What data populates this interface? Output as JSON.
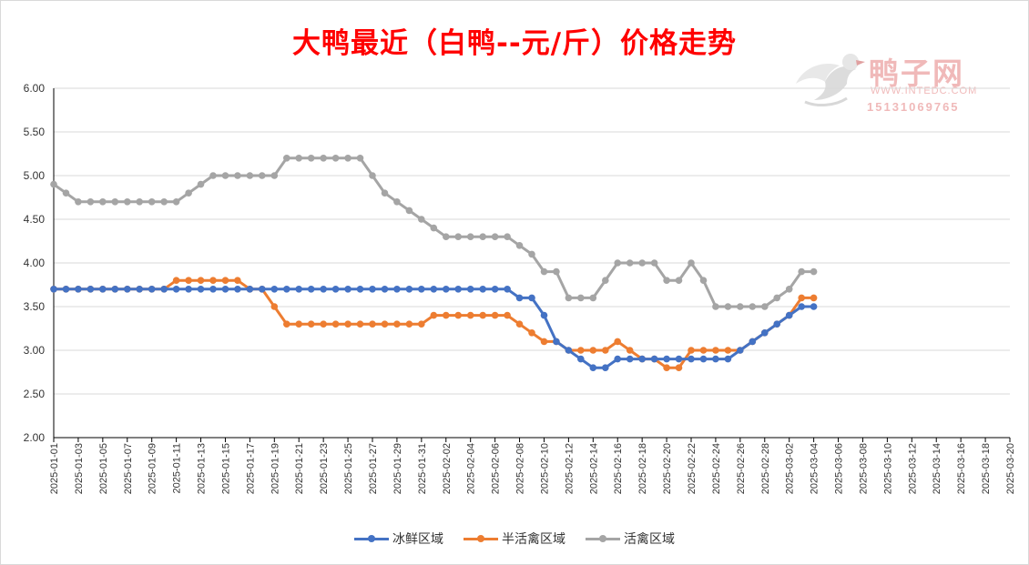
{
  "chart_data": {
    "type": "line",
    "title": "大鸭最近（白鸭--元/斤）价格走势",
    "xlabel": "",
    "ylabel": "",
    "ylim": [
      2.0,
      6.0
    ],
    "y_ticks": [
      "2.00",
      "2.50",
      "3.00",
      "3.50",
      "4.00",
      "4.50",
      "5.00",
      "5.50",
      "6.00"
    ],
    "x_start": "2025-01-01",
    "x_end": "2025-03-20",
    "x_tick_labels": [
      "2025-01-01",
      "2025-01-03",
      "2025-01-05",
      "2025-01-07",
      "2025-01-09",
      "2025-01-11",
      "2025-01-13",
      "2025-01-15",
      "2025-01-17",
      "2025-01-19",
      "2025-01-21",
      "2025-01-23",
      "2025-01-25",
      "2025-01-27",
      "2025-01-29",
      "2025-01-31",
      "2025-02-02",
      "2025-02-04",
      "2025-02-06",
      "2025-02-08",
      "2025-02-10",
      "2025-02-12",
      "2025-02-14",
      "2025-02-16",
      "2025-02-18",
      "2025-02-20",
      "2025-02-22",
      "2025-02-24",
      "2025-02-26",
      "2025-02-28",
      "2025-03-02",
      "2025-03-04",
      "2025-03-06",
      "2025-03-08",
      "2025-03-10",
      "2025-03-12",
      "2025-03-14",
      "2025-03-16",
      "2025-03-18",
      "2025-03-20"
    ],
    "grid": true,
    "legend_position": "bottom",
    "series": [
      {
        "name": "冰鲜区域",
        "color": "#4472c4",
        "x": [
          "2025-01-01",
          "2025-01-02",
          "2025-01-03",
          "2025-01-04",
          "2025-01-05",
          "2025-01-06",
          "2025-01-07",
          "2025-01-08",
          "2025-01-09",
          "2025-01-10",
          "2025-01-11",
          "2025-01-12",
          "2025-01-13",
          "2025-01-14",
          "2025-01-15",
          "2025-01-16",
          "2025-01-17",
          "2025-01-18",
          "2025-01-19",
          "2025-01-20",
          "2025-01-21",
          "2025-01-22",
          "2025-01-23",
          "2025-01-24",
          "2025-01-25",
          "2025-01-26",
          "2025-01-27",
          "2025-01-28",
          "2025-01-29",
          "2025-01-30",
          "2025-01-31",
          "2025-02-01",
          "2025-02-02",
          "2025-02-03",
          "2025-02-04",
          "2025-02-05",
          "2025-02-06",
          "2025-02-07",
          "2025-02-08",
          "2025-02-09",
          "2025-02-10",
          "2025-02-11",
          "2025-02-12",
          "2025-02-13",
          "2025-02-14",
          "2025-02-15",
          "2025-02-16",
          "2025-02-17",
          "2025-02-18",
          "2025-02-19",
          "2025-02-20",
          "2025-02-21",
          "2025-02-22",
          "2025-02-23",
          "2025-02-24",
          "2025-02-25",
          "2025-02-26",
          "2025-02-27",
          "2025-02-28",
          "2025-03-01",
          "2025-03-02",
          "2025-03-03",
          "2025-03-04"
        ],
        "values": [
          3.7,
          3.7,
          3.7,
          3.7,
          3.7,
          3.7,
          3.7,
          3.7,
          3.7,
          3.7,
          3.7,
          3.7,
          3.7,
          3.7,
          3.7,
          3.7,
          3.7,
          3.7,
          3.7,
          3.7,
          3.7,
          3.7,
          3.7,
          3.7,
          3.7,
          3.7,
          3.7,
          3.7,
          3.7,
          3.7,
          3.7,
          3.7,
          3.7,
          3.7,
          3.7,
          3.7,
          3.7,
          3.7,
          3.6,
          3.6,
          3.4,
          3.1,
          3.0,
          2.9,
          2.8,
          2.8,
          2.9,
          2.9,
          2.9,
          2.9,
          2.9,
          2.9,
          2.9,
          2.9,
          2.9,
          2.9,
          3.0,
          3.1,
          3.2,
          3.3,
          3.4,
          3.5,
          3.5
        ]
      },
      {
        "name": "半活禽区域",
        "color": "#ed7d31",
        "x": [
          "2025-01-01",
          "2025-01-02",
          "2025-01-03",
          "2025-01-04",
          "2025-01-05",
          "2025-01-06",
          "2025-01-07",
          "2025-01-08",
          "2025-01-09",
          "2025-01-10",
          "2025-01-11",
          "2025-01-12",
          "2025-01-13",
          "2025-01-14",
          "2025-01-15",
          "2025-01-16",
          "2025-01-17",
          "2025-01-18",
          "2025-01-19",
          "2025-01-20",
          "2025-01-21",
          "2025-01-22",
          "2025-01-23",
          "2025-01-24",
          "2025-01-25",
          "2025-01-26",
          "2025-01-27",
          "2025-01-28",
          "2025-01-29",
          "2025-01-30",
          "2025-01-31",
          "2025-02-01",
          "2025-02-02",
          "2025-02-03",
          "2025-02-04",
          "2025-02-05",
          "2025-02-06",
          "2025-02-07",
          "2025-02-08",
          "2025-02-09",
          "2025-02-10",
          "2025-02-11",
          "2025-02-12",
          "2025-02-13",
          "2025-02-14",
          "2025-02-15",
          "2025-02-16",
          "2025-02-17",
          "2025-02-18",
          "2025-02-19",
          "2025-02-20",
          "2025-02-21",
          "2025-02-22",
          "2025-02-23",
          "2025-02-24",
          "2025-02-25",
          "2025-02-26",
          "2025-02-27",
          "2025-02-28",
          "2025-03-01",
          "2025-03-02",
          "2025-03-03",
          "2025-03-04"
        ],
        "values": [
          3.7,
          3.7,
          3.7,
          3.7,
          3.7,
          3.7,
          3.7,
          3.7,
          3.7,
          3.7,
          3.8,
          3.8,
          3.8,
          3.8,
          3.8,
          3.8,
          3.7,
          3.7,
          3.5,
          3.3,
          3.3,
          3.3,
          3.3,
          3.3,
          3.3,
          3.3,
          3.3,
          3.3,
          3.3,
          3.3,
          3.3,
          3.4,
          3.4,
          3.4,
          3.4,
          3.4,
          3.4,
          3.4,
          3.3,
          3.2,
          3.1,
          3.1,
          3.0,
          3.0,
          3.0,
          3.0,
          3.1,
          3.0,
          2.9,
          2.9,
          2.8,
          2.8,
          3.0,
          3.0,
          3.0,
          3.0,
          3.0,
          3.1,
          3.2,
          3.3,
          3.4,
          3.6,
          3.6
        ]
      },
      {
        "name": "活禽区域",
        "color": "#a5a5a5",
        "x": [
          "2025-01-01",
          "2025-01-02",
          "2025-01-03",
          "2025-01-04",
          "2025-01-05",
          "2025-01-06",
          "2025-01-07",
          "2025-01-08",
          "2025-01-09",
          "2025-01-10",
          "2025-01-11",
          "2025-01-12",
          "2025-01-13",
          "2025-01-14",
          "2025-01-15",
          "2025-01-16",
          "2025-01-17",
          "2025-01-18",
          "2025-01-19",
          "2025-01-20",
          "2025-01-21",
          "2025-01-22",
          "2025-01-23",
          "2025-01-24",
          "2025-01-25",
          "2025-01-26",
          "2025-01-27",
          "2025-01-28",
          "2025-01-29",
          "2025-01-30",
          "2025-01-31",
          "2025-02-01",
          "2025-02-02",
          "2025-02-03",
          "2025-02-04",
          "2025-02-05",
          "2025-02-06",
          "2025-02-07",
          "2025-02-08",
          "2025-02-09",
          "2025-02-10",
          "2025-02-11",
          "2025-02-12",
          "2025-02-13",
          "2025-02-14",
          "2025-02-15",
          "2025-02-16",
          "2025-02-17",
          "2025-02-18",
          "2025-02-19",
          "2025-02-20",
          "2025-02-21",
          "2025-02-22",
          "2025-02-23",
          "2025-02-24",
          "2025-02-25",
          "2025-02-26",
          "2025-02-27",
          "2025-02-28",
          "2025-03-01",
          "2025-03-02",
          "2025-03-03",
          "2025-03-04"
        ],
        "values": [
          4.9,
          4.8,
          4.7,
          4.7,
          4.7,
          4.7,
          4.7,
          4.7,
          4.7,
          4.7,
          4.7,
          4.8,
          4.9,
          5.0,
          5.0,
          5.0,
          5.0,
          5.0,
          5.0,
          5.2,
          5.2,
          5.2,
          5.2,
          5.2,
          5.2,
          5.2,
          5.0,
          4.8,
          4.7,
          4.6,
          4.5,
          4.4,
          4.3,
          4.3,
          4.3,
          4.3,
          4.3,
          4.3,
          4.2,
          4.1,
          3.9,
          3.9,
          3.6,
          3.6,
          3.6,
          3.8,
          4.0,
          4.0,
          4.0,
          4.0,
          3.8,
          3.8,
          4.0,
          3.8,
          3.5,
          3.5,
          3.5,
          3.5,
          3.5,
          3.6,
          3.7,
          3.9,
          3.9
        ]
      }
    ]
  },
  "watermark": {
    "brand": "鸭子网",
    "url": "WWW.INTEDC.COM",
    "phone": "15131069765"
  }
}
